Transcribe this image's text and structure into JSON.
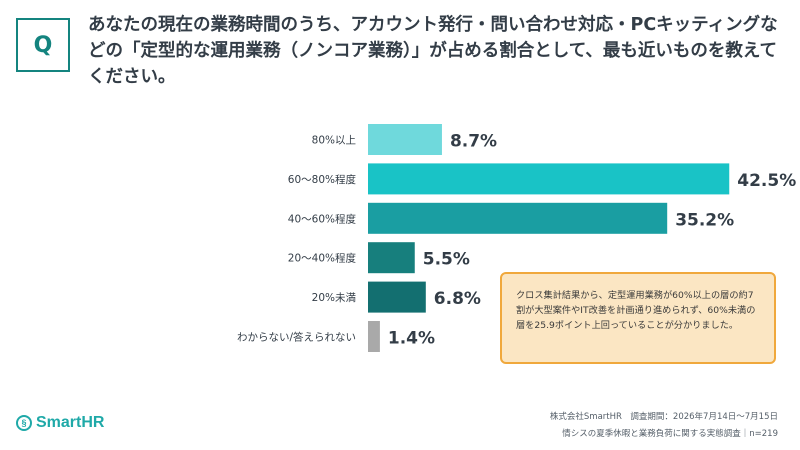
{
  "header": {
    "q_label": "Q",
    "question": "あなたの現在の業務時間のうち、アカウント発行・問い合わせ対応・PCキッティングなどの「定型的な運用業務（ノンコア業務）」が占める割合として、最も近いものを教えてください。"
  },
  "chart_data": {
    "type": "bar",
    "orientation": "horizontal",
    "categories": [
      "80%以上",
      "60〜80%程度",
      "40〜60%程度",
      "20〜40%程度",
      "20%未満",
      "わからない/答えられない"
    ],
    "values": [
      8.7,
      42.5,
      35.2,
      5.5,
      6.8,
      1.4
    ],
    "value_labels": [
      "8.7%",
      "42.5%",
      "35.2%",
      "5.5%",
      "6.8%",
      "1.4%"
    ],
    "colors": [
      "#6fd9dc",
      "#19c3c6",
      "#1a9ea2",
      "#177f7d",
      "#136f70",
      "#a9a9a9"
    ],
    "xlim": [
      0,
      50
    ]
  },
  "note": {
    "text": "クロス集計結果から、定型運用業務が60%以上の層の約7割が大型案件やIT改善を計画通り進められず、60%未満の層を25.9ポイント上回っていることが分かりました。"
  },
  "logo": {
    "icon": "smarthr-logo-icon",
    "text": "SmartHR"
  },
  "footer": {
    "line1": "株式会社SmartHR　調査期間：2026年7月14日〜7月15日",
    "line2": "情シスの夏季休暇と業務負荷に関する実態調査｜n=219"
  }
}
